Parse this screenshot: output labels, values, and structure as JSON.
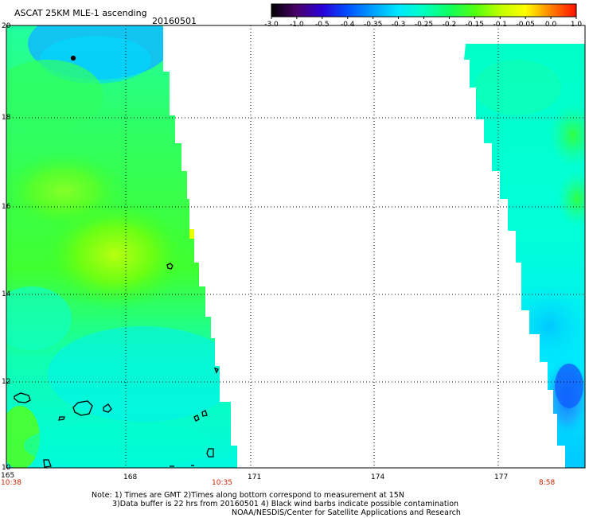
{
  "header": {
    "title": "ASCAT 25KM MLE-1 ascending",
    "date": "20160501"
  },
  "colorbar": {
    "labels": [
      "-3.0",
      "-1.0",
      "-0.5",
      "-0.4",
      "-0.35",
      "-0.3",
      "-0.25",
      "-0.2",
      "-0.15",
      "-0.1",
      "-0.05",
      "0.0",
      "1.0"
    ],
    "colors": [
      "#000000",
      "#4a006a",
      "#2a00d8",
      "#0050ff",
      "#00a0ff",
      "#00e8ff",
      "#00ffc0",
      "#10ff60",
      "#50ff10",
      "#c0ff00",
      "#ffff00",
      "#ff8000",
      "#ff1000"
    ]
  },
  "axes": {
    "lat_labels": [
      "20",
      "18",
      "16",
      "14",
      "12",
      "10"
    ],
    "lon_labels": [
      "165",
      "168",
      "171",
      "174",
      "177"
    ]
  },
  "times": {
    "left": "10:38",
    "mid": "10:35",
    "right": "8:58"
  },
  "notes": {
    "line1": "Note: 1) Times are GMT 2)Times along bottom correspond to measurement at 15N",
    "line2": "3)Data buffer is 22 hrs from 20160501 4) Black wind barbs indicate possible contamination",
    "line3": "NOAA/NESDIS/Center for Satellite Applications and Research"
  }
}
